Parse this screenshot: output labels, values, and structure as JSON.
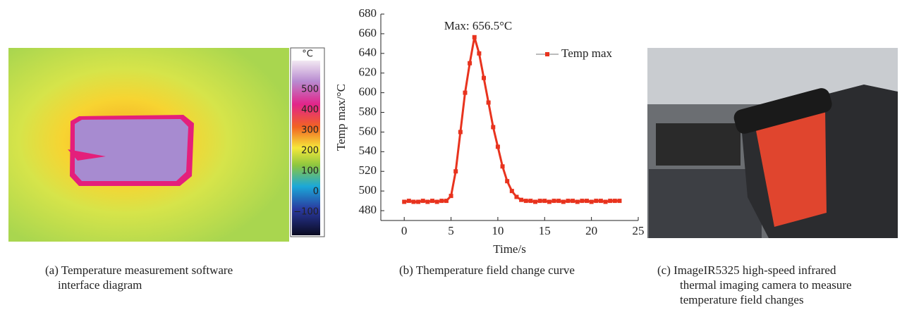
{
  "panel_a": {
    "colorbar": {
      "unit": "°C",
      "labels": [
        "500",
        "400",
        "300",
        "200",
        "100",
        "0",
        "−100"
      ]
    },
    "caption": [
      "(a) Temperature measurement software",
      "interface diagram"
    ]
  },
  "chart_data": {
    "type": "line",
    "annotation": "Max: 656.5°C",
    "x_label": "Time/s",
    "y_label": "Temp max/°C",
    "x": [
      0,
      0.5,
      1,
      1.5,
      2,
      2.5,
      3,
      3.5,
      4,
      4.5,
      5,
      5.5,
      6,
      6.5,
      7,
      7.5,
      8,
      8.5,
      9,
      9.5,
      10,
      10.5,
      11,
      11.5,
      12,
      12.5,
      13,
      13.5,
      14,
      14.5,
      15,
      15.5,
      16,
      16.5,
      17,
      17.5,
      18,
      18.5,
      19,
      19.5,
      20,
      20.5,
      21,
      21.5,
      22,
      22.5,
      23
    ],
    "series": [
      {
        "name": "Temp max",
        "color": "#e8331e",
        "values": [
          489,
          490,
          489,
          489,
          490,
          489,
          490,
          489,
          490,
          490,
          495,
          520,
          560,
          600,
          630,
          656.5,
          640,
          615,
          590,
          565,
          545,
          525,
          510,
          500,
          494,
          491,
          490,
          490,
          489,
          490,
          490,
          489,
          490,
          490,
          489,
          490,
          490,
          489,
          490,
          490,
          489,
          490,
          490,
          489,
          490,
          490,
          490
        ]
      }
    ],
    "xlim": [
      -2.5,
      25
    ],
    "xticks": [
      0,
      5,
      10,
      15,
      20,
      25
    ],
    "ylim": [
      470,
      680
    ],
    "yticks": [
      480,
      500,
      520,
      540,
      560,
      580,
      600,
      620,
      640,
      660,
      680
    ],
    "legend": "upper right",
    "caption": [
      "(b) Themperature field change curve"
    ]
  },
  "panel_c": {
    "caption": [
      "(c) ImageIR5325 high-speed infrared",
      "thermal imaging camera to measure",
      "temperature field changes"
    ]
  }
}
